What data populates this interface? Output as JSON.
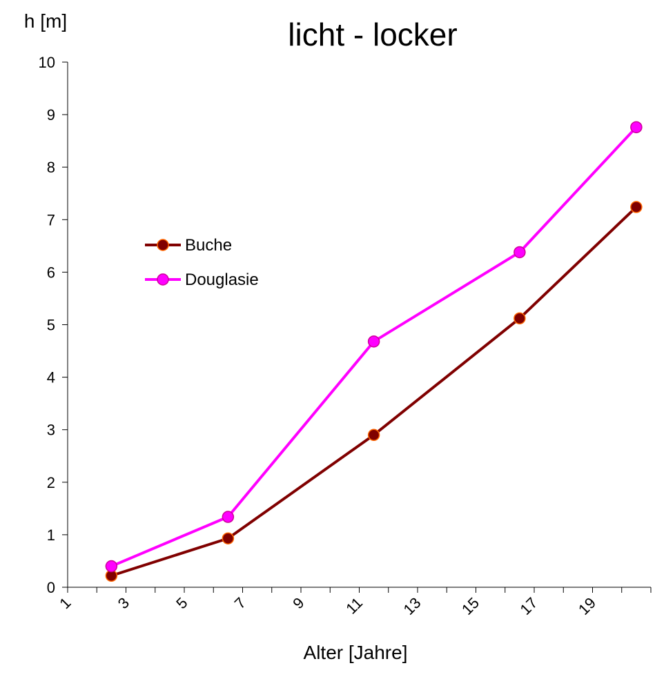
{
  "chart_data": {
    "type": "line",
    "title": "licht - locker",
    "ylabel": "h [m]",
    "xlabel": "Alter [Jahre]",
    "xlim": [
      1,
      21
    ],
    "xticks": [
      1,
      3,
      5,
      7,
      9,
      11,
      13,
      15,
      17,
      19
    ],
    "xminorticks": [
      2,
      4,
      6,
      8,
      10,
      12,
      14,
      16,
      18,
      20,
      21
    ],
    "ylim": [
      0,
      10
    ],
    "yticks": [
      0,
      1,
      2,
      3,
      4,
      5,
      6,
      7,
      8,
      9,
      10
    ],
    "x": [
      2.5,
      6.5,
      11.5,
      16.5,
      20.5
    ],
    "series": [
      {
        "name": "Buche",
        "color": "#800000",
        "marker_edge": "#ff6600",
        "values": [
          0.22,
          0.93,
          2.9,
          5.12,
          7.24
        ]
      },
      {
        "name": "Douglasie",
        "color": "#ff00ff",
        "marker_edge": "#cc0099",
        "values": [
          0.4,
          1.34,
          4.68,
          6.38,
          8.76
        ]
      }
    ]
  }
}
